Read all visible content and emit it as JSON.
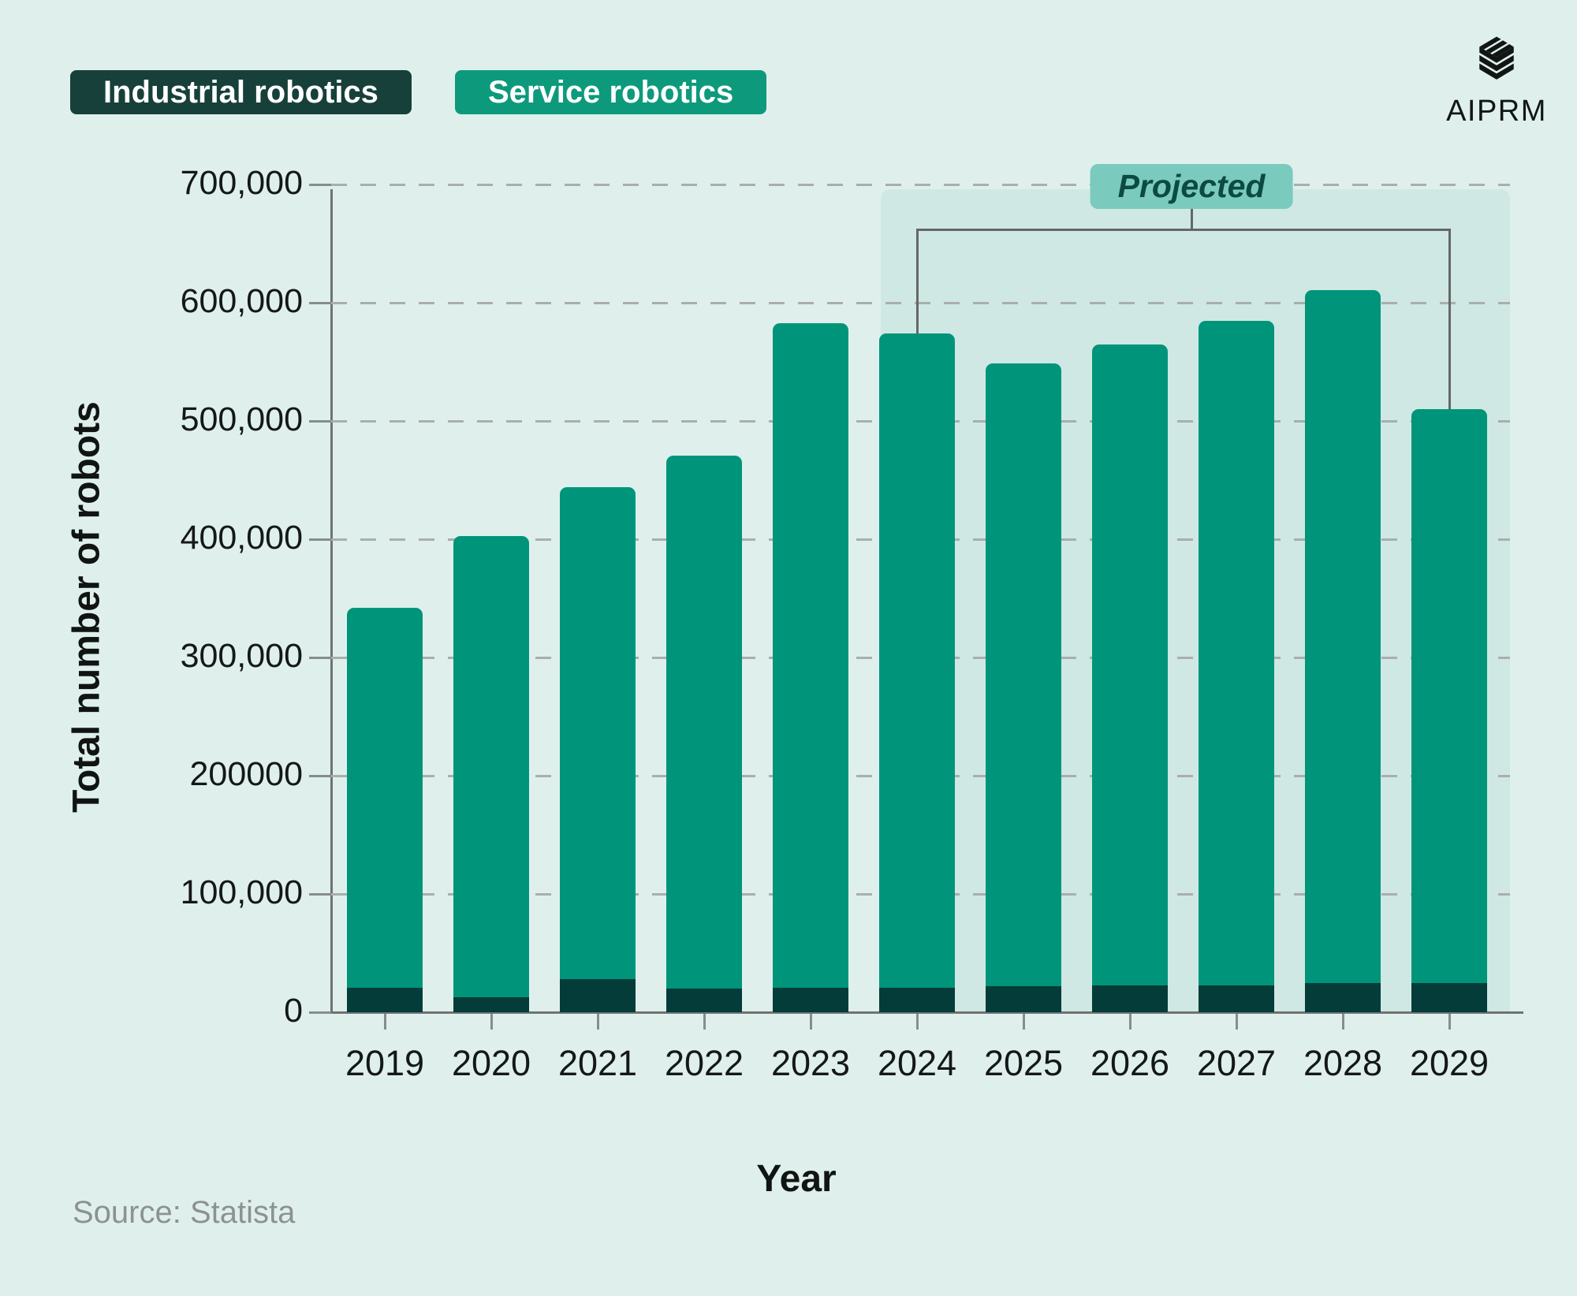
{
  "page": {
    "background": "#dff0ec",
    "projected_band_color": "#cfe8e3"
  },
  "legend": {
    "items": [
      {
        "label": "Industrial robotics",
        "color": "#17403a",
        "text_color": "#ffffff"
      },
      {
        "label": "Service robotics",
        "color": "#0d9a7c",
        "text_color": "#ffffff"
      }
    ]
  },
  "brand": {
    "name": "AIPRM",
    "icon": "aiprm-cube-logo",
    "color": "#111614"
  },
  "annotation": {
    "label": "Projected",
    "badge_bg": "#7bcabe",
    "badge_text_color": "#0c4a44",
    "from_year": "2024",
    "to_year": "2029"
  },
  "source": {
    "text": "Source: Statista"
  },
  "chart_data": {
    "type": "bar",
    "stacked": true,
    "title": "",
    "xlabel": "Year",
    "ylabel": "Total number of robots",
    "categories": [
      "2019",
      "2020",
      "2021",
      "2022",
      "2023",
      "2024",
      "2025",
      "2026",
      "2027",
      "2028",
      "2029"
    ],
    "series": [
      {
        "name": "Industrial robotics",
        "color": "#033c38",
        "values": [
          21000,
          13000,
          28000,
          20000,
          21000,
          21000,
          22000,
          23000,
          23000,
          25000,
          25000
        ]
      },
      {
        "name": "Service robotics",
        "color": "#00957a",
        "values": [
          321000,
          390000,
          416000,
          451000,
          562000,
          553000,
          527000,
          542000,
          562000,
          586000,
          485000
        ]
      }
    ],
    "totals": [
      342000,
      403000,
      444000,
      471000,
      583000,
      574000,
      549000,
      565000,
      585000,
      611000,
      510000
    ],
    "ylim": [
      0,
      700000
    ],
    "ytick_values": [
      0,
      100000,
      200000,
      300000,
      400000,
      500000,
      600000,
      700000
    ],
    "ytick_labels": [
      "0",
      "100,000",
      "200000",
      "300,000",
      "400,000",
      "500,000",
      "600,000",
      "700,000"
    ],
    "grid": "dashed-horizontal",
    "legend_position": "top-left",
    "projected_years": [
      "2024",
      "2025",
      "2026",
      "2027",
      "2028",
      "2029"
    ]
  }
}
